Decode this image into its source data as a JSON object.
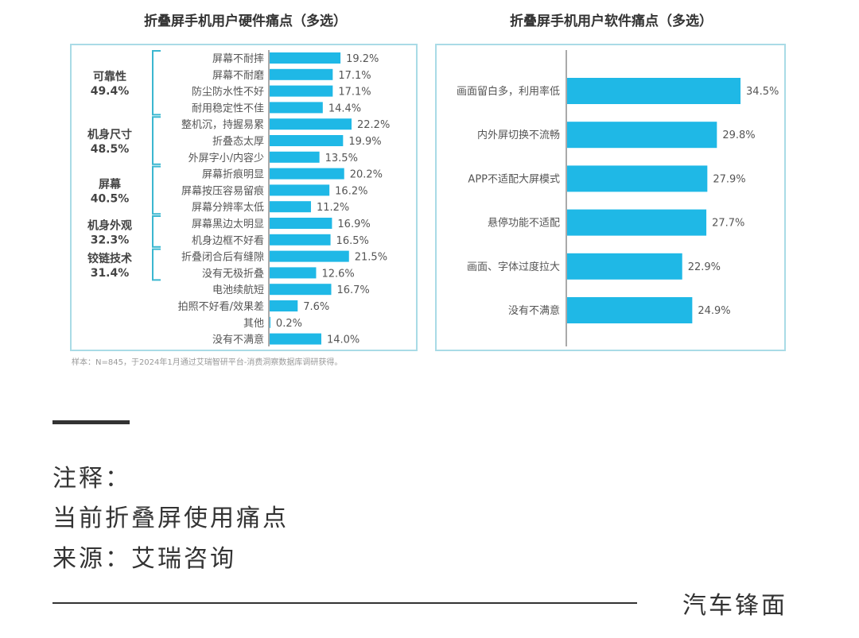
{
  "chart_data": [
    {
      "type": "bar",
      "orientation": "horizontal",
      "title": "折叠屏手机用户硬件痛点（多选）",
      "categories": [
        "屏幕不耐摔",
        "屏幕不耐磨",
        "防尘防水性不好",
        "耐用稳定性不佳",
        "整机沉，持握易累",
        "折叠态太厚",
        "外屏字小/内容少",
        "屏幕折痕明显",
        "屏幕按压容易留痕",
        "屏幕分辨率太低",
        "屏幕黑边太明显",
        "机身边框不好看",
        "折叠闭合后有缝隙",
        "没有无极折叠",
        "电池续航短",
        "拍照不好看/效果差",
        "其他",
        "没有不满意"
      ],
      "values": [
        19.2,
        17.1,
        17.1,
        14.4,
        22.2,
        19.9,
        13.5,
        20.2,
        16.2,
        11.2,
        16.9,
        16.5,
        21.5,
        12.6,
        16.7,
        7.6,
        0.2,
        14.0
      ],
      "value_labels": [
        "19.2%",
        "17.1%",
        "17.1%",
        "14.4%",
        "22.2%",
        "19.9%",
        "13.5%",
        "20.2%",
        "16.2%",
        "11.2%",
        "16.9%",
        "16.5%",
        "21.5%",
        "12.6%",
        "16.7%",
        "7.6%",
        "0.2%",
        "14.0%"
      ],
      "groups": [
        {
          "name": "可靠性",
          "value": "49.4%",
          "start": 0,
          "end": 3
        },
        {
          "name": "机身尺寸",
          "value": "48.5%",
          "start": 4,
          "end": 6
        },
        {
          "name": "屏幕",
          "value": "40.5%",
          "start": 7,
          "end": 9
        },
        {
          "name": "机身外观",
          "value": "32.3%",
          "start": 10,
          "end": 11
        },
        {
          "name": "铰链技术",
          "value": "31.4%",
          "start": 12,
          "end": 13
        }
      ],
      "color": "#1fb8e6",
      "note": "样本：N=845，于2024年1月通过艾瑞智研平台-消费洞察数据库调研获得。"
    },
    {
      "type": "bar",
      "orientation": "horizontal",
      "title": "折叠屏手机用户软件痛点（多选）",
      "categories": [
        "画面留白多，利用率低",
        "内外屏切换不流畅",
        "APP不适配大屏模式",
        "悬停功能不适配",
        "画面、字体过度拉大",
        "没有不满意"
      ],
      "values": [
        34.5,
        29.8,
        27.9,
        27.7,
        22.9,
        24.9
      ],
      "value_labels": [
        "34.5%",
        "29.8%",
        "27.9%",
        "27.7%",
        "22.9%",
        "24.9%"
      ],
      "color": "#1fb8e6"
    }
  ],
  "footer": {
    "note_label": "注释：",
    "note_text": "当前折叠屏使用痛点",
    "source": "来源：艾瑞咨询",
    "brand": "汽车锋面"
  }
}
